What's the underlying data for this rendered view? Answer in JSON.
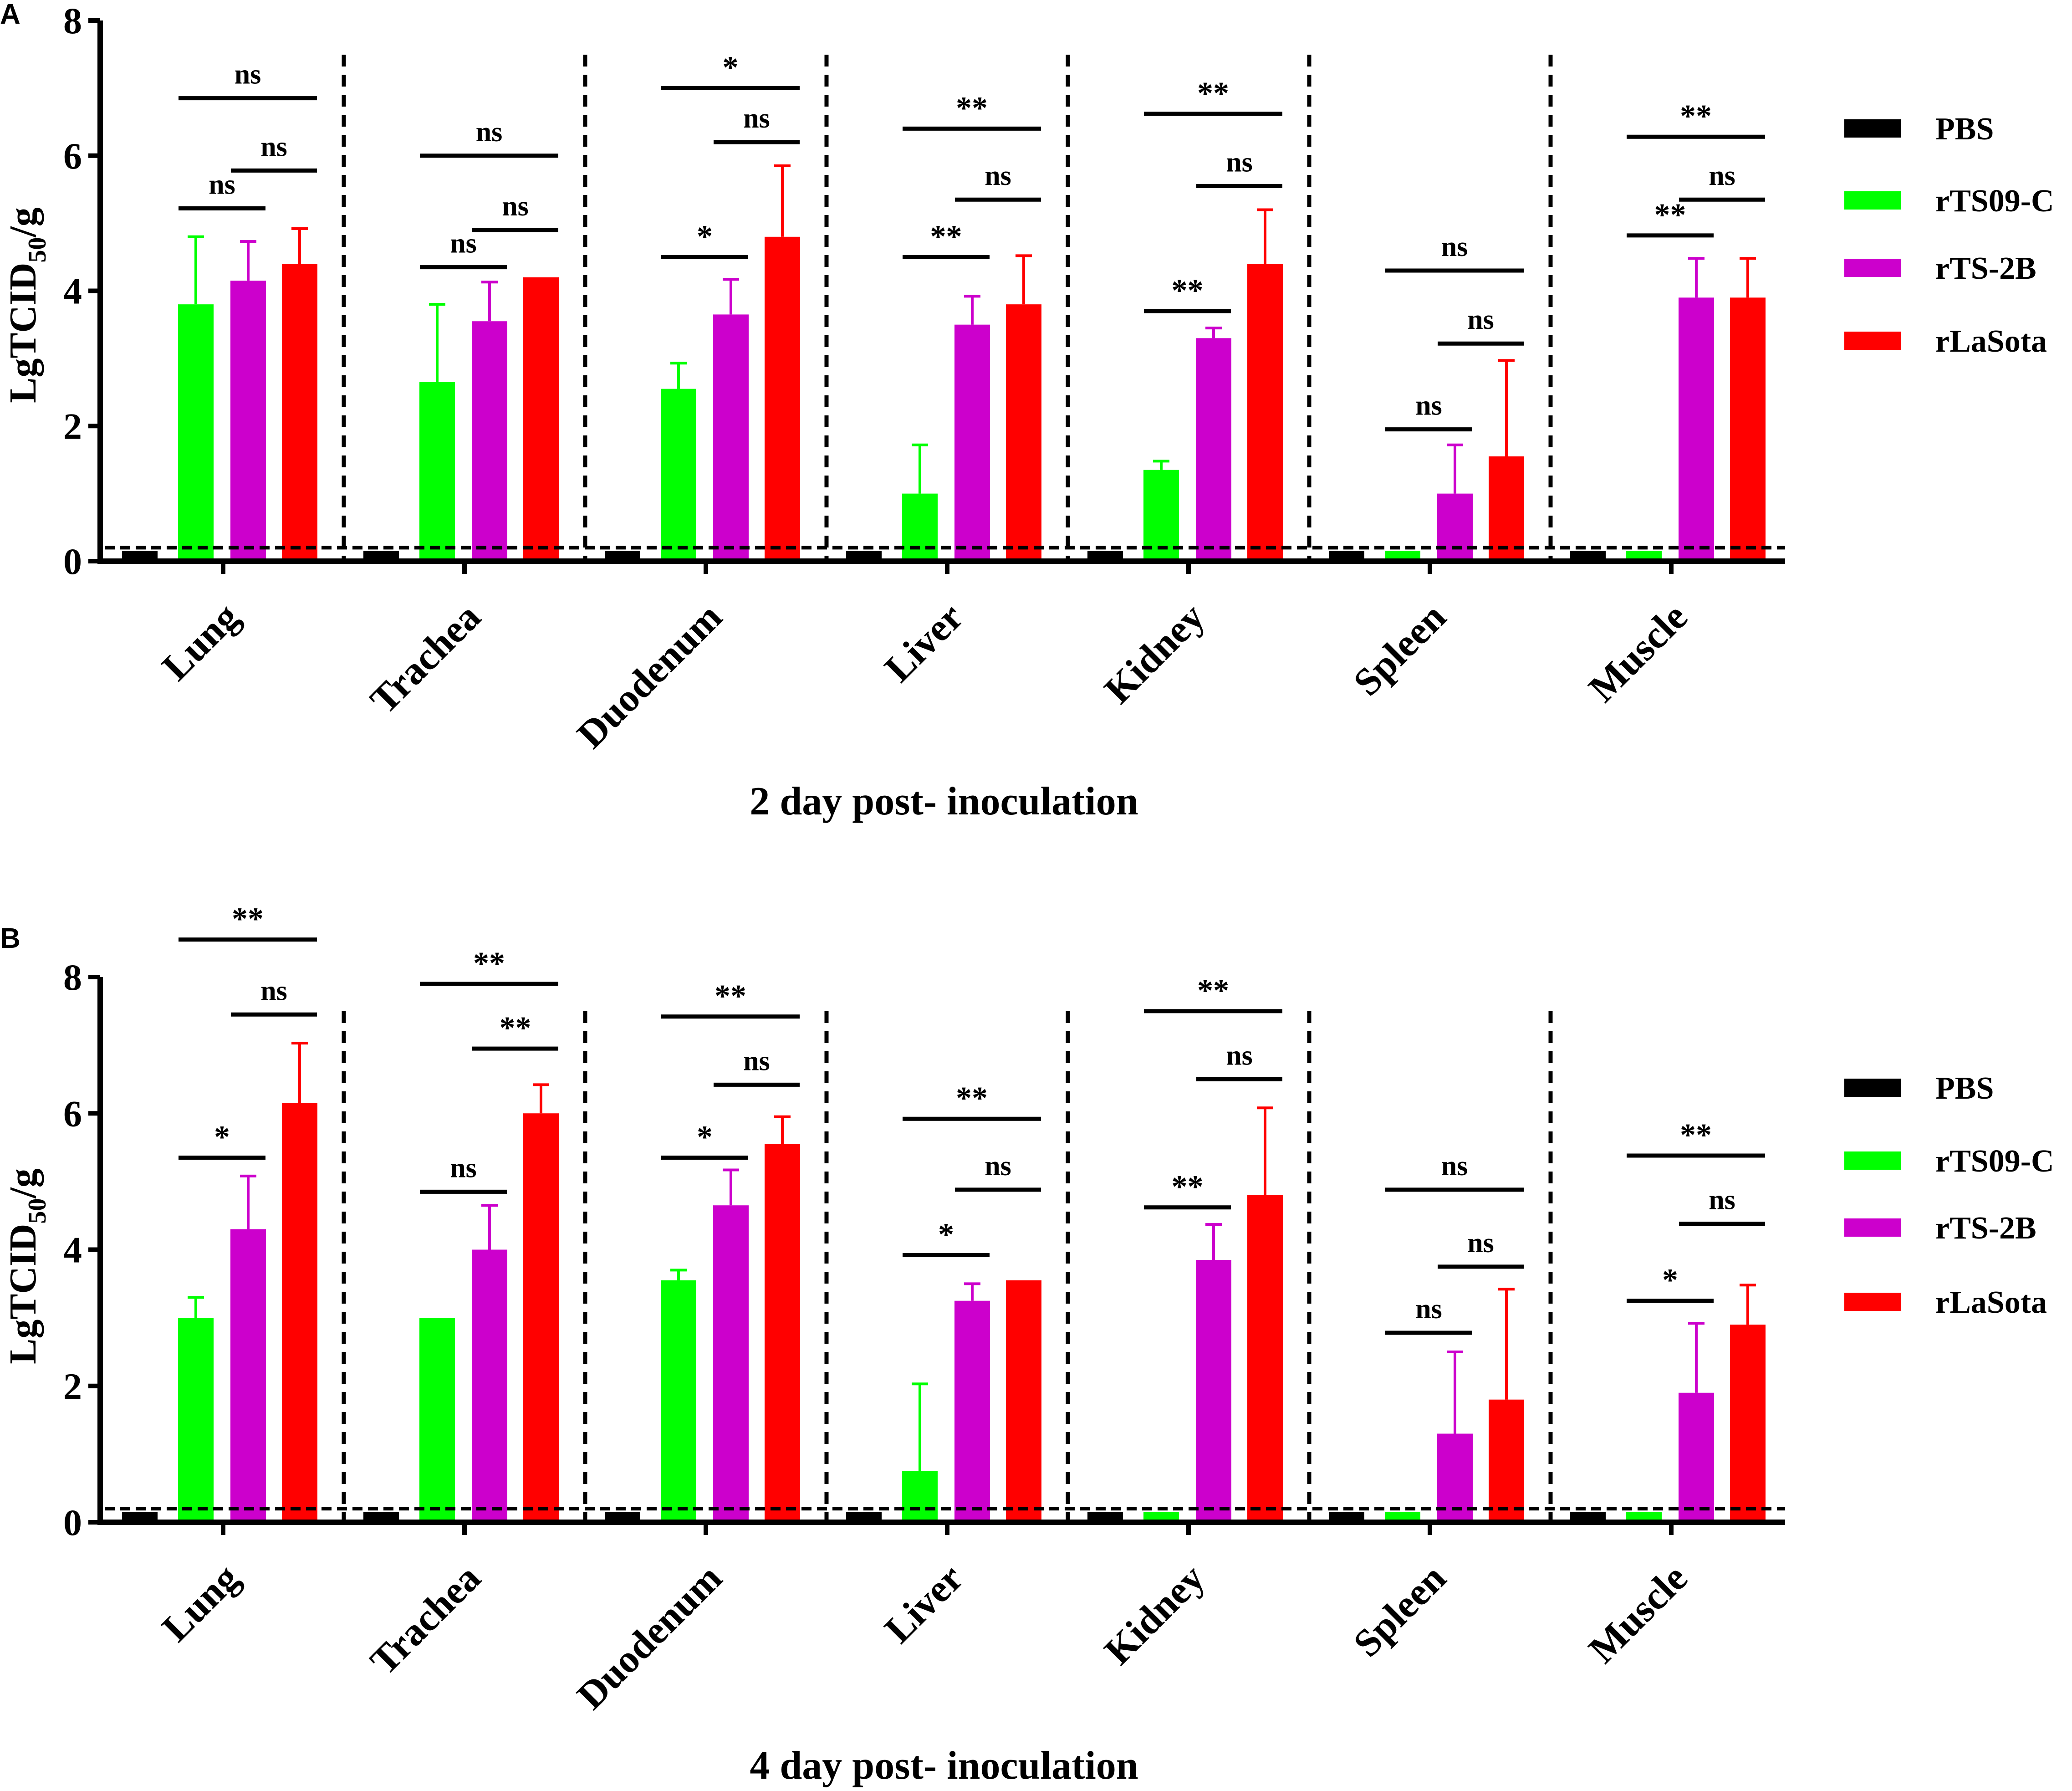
{
  "figure": {
    "ylabel_main": "LgTCID",
    "ylabel_sub": "50",
    "ylabel_tail": "/g"
  },
  "legend": [
    {
      "name": "PBS",
      "color": "#000000"
    },
    {
      "name": "rTS09-C",
      "color": "#00ff00"
    },
    {
      "name": "rTS-2B",
      "color": "#cc00cc"
    },
    {
      "name": "rLaSota",
      "color": "#ff0000"
    }
  ],
  "chart_data": [
    {
      "type": "bar",
      "panel": "A",
      "title": "2 day post- inoculation",
      "xlabel": "2 day post- inoculation",
      "ylabel": "LgTCID50/g",
      "ylim": [
        0,
        8
      ],
      "yticks": [
        "0",
        "2",
        "4",
        "6",
        "8"
      ],
      "detection_limit": 0.2,
      "categories": [
        "Lung",
        "Trachea",
        "Duodenum",
        "Liver",
        "Kidney",
        "Spleen",
        "Muscle"
      ],
      "series": [
        {
          "name": "PBS",
          "values": [
            0.15,
            0.15,
            0.15,
            0.15,
            0.15,
            0.15,
            0.15
          ],
          "errors": [
            0,
            0,
            0,
            0,
            0,
            0,
            0
          ]
        },
        {
          "name": "rTS09-C",
          "values": [
            3.8,
            2.65,
            2.55,
            1.0,
            1.35,
            0.15,
            0.15
          ],
          "errors": [
            1.0,
            1.15,
            0.38,
            0.72,
            0.13,
            0,
            0
          ]
        },
        {
          "name": "rTS-2B",
          "values": [
            4.15,
            3.55,
            3.65,
            3.5,
            3.3,
            1.0,
            3.9
          ],
          "errors": [
            0.58,
            0.58,
            0.52,
            0.42,
            0.15,
            0.72,
            0.58
          ]
        },
        {
          "name": "rLaSota",
          "values": [
            4.4,
            4.2,
            4.8,
            3.8,
            4.4,
            1.55,
            3.9
          ],
          "errors": [
            0.52,
            0,
            1.05,
            0.72,
            0.8,
            1.42,
            0.58
          ]
        }
      ],
      "significance": [
        {
          "cat": 0,
          "from": 1,
          "to": 2,
          "y": 5.22,
          "label": "ns"
        },
        {
          "cat": 0,
          "from": 2,
          "to": 3,
          "y": 5.78,
          "label": "ns"
        },
        {
          "cat": 0,
          "from": 1,
          "to": 3,
          "y": 6.85,
          "label": "ns"
        },
        {
          "cat": 1,
          "from": 1,
          "to": 2,
          "y": 4.35,
          "label": "ns"
        },
        {
          "cat": 1,
          "from": 2,
          "to": 3,
          "y": 4.9,
          "label": "ns"
        },
        {
          "cat": 1,
          "from": 1,
          "to": 3,
          "y": 6.0,
          "label": "ns"
        },
        {
          "cat": 2,
          "from": 1,
          "to": 2,
          "y": 4.5,
          "label": "*"
        },
        {
          "cat": 2,
          "from": 2,
          "to": 3,
          "y": 6.2,
          "label": "ns"
        },
        {
          "cat": 2,
          "from": 1,
          "to": 3,
          "y": 7.0,
          "label": "*"
        },
        {
          "cat": 3,
          "from": 1,
          "to": 2,
          "y": 4.5,
          "label": "**"
        },
        {
          "cat": 3,
          "from": 2,
          "to": 3,
          "y": 5.35,
          "label": "ns"
        },
        {
          "cat": 3,
          "from": 1,
          "to": 3,
          "y": 6.4,
          "label": "**"
        },
        {
          "cat": 4,
          "from": 1,
          "to": 2,
          "y": 3.7,
          "label": "**"
        },
        {
          "cat": 4,
          "from": 2,
          "to": 3,
          "y": 5.55,
          "label": "ns"
        },
        {
          "cat": 4,
          "from": 1,
          "to": 3,
          "y": 6.62,
          "label": "**"
        },
        {
          "cat": 5,
          "from": 1,
          "to": 2,
          "y": 1.95,
          "label": "ns"
        },
        {
          "cat": 5,
          "from": 2,
          "to": 3,
          "y": 3.22,
          "label": "ns"
        },
        {
          "cat": 5,
          "from": 1,
          "to": 3,
          "y": 4.3,
          "label": "ns"
        },
        {
          "cat": 6,
          "from": 1,
          "to": 2,
          "y": 4.82,
          "label": "**"
        },
        {
          "cat": 6,
          "from": 2,
          "to": 3,
          "y": 5.35,
          "label": "ns"
        },
        {
          "cat": 6,
          "from": 1,
          "to": 3,
          "y": 6.28,
          "label": "**"
        }
      ]
    },
    {
      "type": "bar",
      "panel": "B",
      "title": "4 day post- inoculation",
      "xlabel": "4 day post- inoculation",
      "ylabel": "LgTCID50/g",
      "ylim": [
        0,
        8
      ],
      "yticks": [
        "0",
        "2",
        "4",
        "6",
        "8"
      ],
      "detection_limit": 0.2,
      "categories": [
        "Lung",
        "Trachea",
        "Duodenum",
        "Liver",
        "Kidney",
        "Spleen",
        "Muscle"
      ],
      "series": [
        {
          "name": "PBS",
          "values": [
            0.15,
            0.15,
            0.15,
            0.15,
            0.15,
            0.15,
            0.15
          ],
          "errors": [
            0,
            0,
            0,
            0,
            0,
            0,
            0
          ]
        },
        {
          "name": "rTS09-C",
          "values": [
            3.0,
            3.0,
            3.55,
            0.75,
            0.15,
            0.15,
            0.15
          ],
          "errors": [
            0.3,
            0,
            0.15,
            1.28,
            0,
            0,
            0
          ]
        },
        {
          "name": "rTS-2B",
          "values": [
            4.3,
            4.0,
            4.65,
            3.25,
            3.85,
            1.3,
            1.9
          ],
          "errors": [
            0.78,
            0.65,
            0.52,
            0.25,
            0.52,
            1.2,
            1.02
          ]
        },
        {
          "name": "rLaSota",
          "values": [
            6.15,
            6.0,
            5.55,
            3.55,
            4.8,
            1.8,
            2.9
          ],
          "errors": [
            0.88,
            0.42,
            0.4,
            0,
            1.28,
            1.62,
            0.58
          ]
        }
      ],
      "significance": [
        {
          "cat": 0,
          "from": 1,
          "to": 2,
          "y": 5.35,
          "label": "*"
        },
        {
          "cat": 0,
          "from": 2,
          "to": 3,
          "y": 7.45,
          "label": "ns"
        },
        {
          "cat": 0,
          "from": 1,
          "to": 3,
          "y": 8.55,
          "label": "**"
        },
        {
          "cat": 1,
          "from": 1,
          "to": 2,
          "y": 4.85,
          "label": "ns"
        },
        {
          "cat": 1,
          "from": 2,
          "to": 3,
          "y": 6.95,
          "label": "**"
        },
        {
          "cat": 1,
          "from": 1,
          "to": 3,
          "y": 7.9,
          "label": "**"
        },
        {
          "cat": 2,
          "from": 1,
          "to": 2,
          "y": 5.35,
          "label": "*"
        },
        {
          "cat": 2,
          "from": 2,
          "to": 3,
          "y": 6.42,
          "label": "ns"
        },
        {
          "cat": 2,
          "from": 1,
          "to": 3,
          "y": 7.42,
          "label": "**"
        },
        {
          "cat": 3,
          "from": 1,
          "to": 2,
          "y": 3.92,
          "label": "*"
        },
        {
          "cat": 3,
          "from": 2,
          "to": 3,
          "y": 4.88,
          "label": "ns"
        },
        {
          "cat": 3,
          "from": 1,
          "to": 3,
          "y": 5.92,
          "label": "**"
        },
        {
          "cat": 4,
          "from": 1,
          "to": 2,
          "y": 4.62,
          "label": "**"
        },
        {
          "cat": 4,
          "from": 2,
          "to": 3,
          "y": 6.5,
          "label": "ns"
        },
        {
          "cat": 4,
          "from": 1,
          "to": 3,
          "y": 7.5,
          "label": "**"
        },
        {
          "cat": 5,
          "from": 1,
          "to": 2,
          "y": 2.78,
          "label": "ns"
        },
        {
          "cat": 5,
          "from": 2,
          "to": 3,
          "y": 3.75,
          "label": "ns"
        },
        {
          "cat": 5,
          "from": 1,
          "to": 3,
          "y": 4.88,
          "label": "ns"
        },
        {
          "cat": 6,
          "from": 1,
          "to": 2,
          "y": 3.25,
          "label": "*"
        },
        {
          "cat": 6,
          "from": 2,
          "to": 3,
          "y": 4.38,
          "label": "ns"
        },
        {
          "cat": 6,
          "from": 1,
          "to": 3,
          "y": 5.38,
          "label": "**"
        }
      ]
    }
  ]
}
